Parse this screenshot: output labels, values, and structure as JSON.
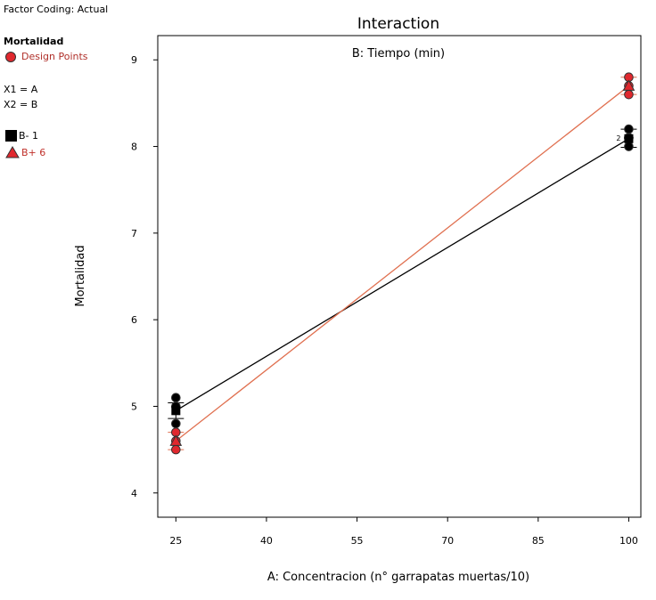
{
  "sidebar": {
    "factor_coding": "Factor Coding: Actual",
    "response_title": "Mortalidad",
    "design_points_label": "Design Points",
    "x1": "X1 = A",
    "x2": "X2 = B",
    "legend_low": "B- 1",
    "legend_high": "B+ 6"
  },
  "colors": {
    "low": "#000000",
    "high": "#e0282e",
    "high_line": "#e07050"
  },
  "chart_data": {
    "type": "line",
    "title": "Interaction",
    "subtitle": "B: Tiempo (min)",
    "xlabel": "A: Concentracion (n° garrapatas muertas/10)",
    "ylabel": "Mortalidad",
    "xlim": [
      22,
      102
    ],
    "ylim": [
      3.72,
      9.28
    ],
    "xticks": [
      25,
      40,
      55,
      70,
      85,
      100
    ],
    "yticks": [
      4,
      5,
      6,
      7,
      8,
      9
    ],
    "series": [
      {
        "name": "B- 1",
        "x": [
          25,
          100
        ],
        "y": [
          4.95,
          8.09
        ],
        "ci": [
          [
            4.86,
            5.04
          ],
          [
            7.99,
            8.2
          ]
        ],
        "points": [
          [
            25,
            4.8
          ],
          [
            25,
            5.0
          ],
          [
            25,
            5.1
          ],
          [
            100,
            8.0
          ],
          [
            100,
            8.1
          ],
          [
            100,
            8.1
          ],
          [
            100,
            8.2
          ]
        ],
        "count_labels": [
          {
            "x": 100,
            "y": 8.1,
            "text": "2"
          }
        ]
      },
      {
        "name": "B+ 6",
        "x": [
          25,
          100
        ],
        "y": [
          4.6,
          8.7
        ],
        "ci": [
          [
            4.5,
            4.7
          ],
          [
            8.6,
            8.8
          ]
        ],
        "points": [
          [
            25,
            4.5
          ],
          [
            25,
            4.6
          ],
          [
            25,
            4.7
          ],
          [
            100,
            8.6
          ],
          [
            100,
            8.7
          ],
          [
            100,
            8.8
          ]
        ],
        "count_labels": []
      }
    ]
  }
}
